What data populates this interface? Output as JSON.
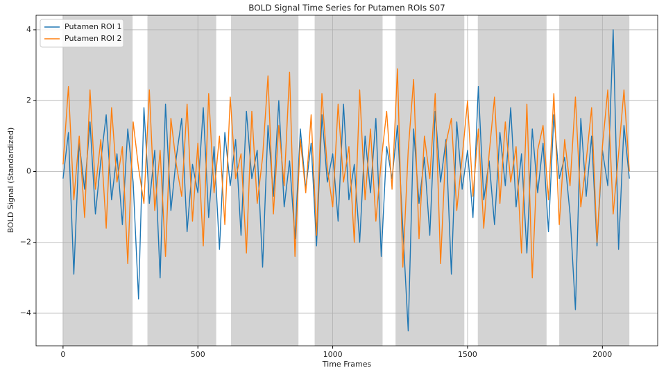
{
  "chart_data": {
    "type": "line",
    "title": "BOLD Signal Time Series for Putamen ROIs S07",
    "xlabel": "Time Frames",
    "ylabel": "BOLD Signal (Standardized)",
    "x": [
      0,
      20,
      40,
      60,
      80,
      100,
      120,
      140,
      160,
      180,
      200,
      220,
      240,
      260,
      280,
      300,
      320,
      340,
      360,
      380,
      400,
      420,
      440,
      460,
      480,
      500,
      520,
      540,
      560,
      580,
      600,
      620,
      640,
      660,
      680,
      700,
      720,
      740,
      760,
      780,
      800,
      820,
      840,
      860,
      880,
      900,
      920,
      940,
      960,
      980,
      1000,
      1020,
      1040,
      1060,
      1080,
      1100,
      1120,
      1140,
      1160,
      1180,
      1200,
      1220,
      1240,
      1260,
      1280,
      1300,
      1320,
      1340,
      1360,
      1380,
      1400,
      1420,
      1440,
      1460,
      1480,
      1500,
      1520,
      1540,
      1560,
      1580,
      1600,
      1620,
      1640,
      1660,
      1680,
      1700,
      1720,
      1740,
      1760,
      1780,
      1800,
      1820,
      1840,
      1860,
      1880,
      1900,
      1920,
      1940,
      1960,
      1980,
      2000,
      2020,
      2040,
      2060,
      2080,
      2100
    ],
    "series": [
      {
        "name": "Putamen ROI 1",
        "color": "#1f77b4",
        "values": [
          -0.2,
          1.1,
          -2.9,
          0.8,
          -0.5,
          1.4,
          -1.2,
          0.3,
          1.6,
          -0.8,
          0.5,
          -1.5,
          1.2,
          -0.3,
          -3.6,
          1.8,
          -0.9,
          0.6,
          -3.0,
          1.9,
          -1.1,
          0.4,
          1.5,
          -1.7,
          0.2,
          -0.6,
          1.8,
          -1.3,
          0.7,
          -2.2,
          1.1,
          -0.4,
          0.9,
          -1.8,
          1.7,
          -0.2,
          0.6,
          -2.7,
          1.3,
          -0.7,
          2.0,
          -1.0,
          0.3,
          -1.9,
          1.2,
          -0.5,
          0.8,
          -2.1,
          1.6,
          -0.3,
          0.5,
          -1.4,
          1.9,
          -0.8,
          0.2,
          -2.0,
          1.0,
          -0.6,
          1.5,
          -2.4,
          0.7,
          -0.2,
          1.3,
          -1.6,
          -4.5,
          1.2,
          -0.9,
          0.4,
          -1.8,
          1.7,
          -0.3,
          0.9,
          -2.9,
          1.4,
          -0.5,
          0.6,
          -1.3,
          2.4,
          -0.8,
          0.3,
          -1.5,
          1.1,
          -0.4,
          1.8,
          -1.0,
          0.5,
          -2.3,
          1.2,
          -0.6,
          0.8,
          -1.7,
          1.6,
          -0.2,
          0.4,
          -1.2,
          -3.9,
          1.5,
          -0.7,
          1.0,
          -2.1,
          0.6,
          -0.4,
          4.0,
          -2.2,
          1.3,
          -0.2
        ]
      },
      {
        "name": "Putamen ROI 2",
        "color": "#ff7f0e",
        "values": [
          0.2,
          2.4,
          -0.8,
          1.0,
          -1.3,
          2.3,
          -0.5,
          0.9,
          -1.6,
          1.8,
          -0.3,
          0.7,
          -2.6,
          1.4,
          0.1,
          -0.9,
          2.3,
          -1.1,
          0.6,
          -2.4,
          1.5,
          0.2,
          -0.7,
          1.9,
          -1.4,
          0.8,
          -2.1,
          2.2,
          -0.6,
          1.0,
          -1.5,
          2.1,
          -0.2,
          0.5,
          -2.3,
          1.7,
          -0.9,
          0.4,
          2.7,
          -1.2,
          1.3,
          -0.4,
          2.8,
          -2.4,
          0.9,
          -0.6,
          1.6,
          -1.8,
          2.2,
          0.1,
          -1.0,
          1.9,
          -0.3,
          0.7,
          -2.0,
          2.3,
          -0.8,
          1.2,
          -1.4,
          0.3,
          1.7,
          -0.5,
          2.9,
          -2.7,
          0.6,
          2.6,
          -1.9,
          1.0,
          -0.2,
          2.2,
          -2.6,
          0.8,
          1.5,
          -1.1,
          0.4,
          2.0,
          -0.7,
          1.2,
          -1.6,
          0.5,
          2.1,
          -0.9,
          1.4,
          -0.3,
          0.7,
          -2.3,
          1.9,
          -3.0,
          0.6,
          1.3,
          -0.8,
          2.2,
          -1.5,
          0.9,
          -0.4,
          2.1,
          -1.0,
          0.3,
          1.8,
          -2.0,
          0.7,
          2.3,
          -1.2,
          0.5,
          2.3,
          0.0
        ]
      }
    ],
    "blocks": [
      {
        "start": 0,
        "end": 258
      },
      {
        "start": 313,
        "end": 568
      },
      {
        "start": 623,
        "end": 873
      },
      {
        "start": 933,
        "end": 1185
      },
      {
        "start": 1233,
        "end": 1488
      },
      {
        "start": 1538,
        "end": 1793
      },
      {
        "start": 1840,
        "end": 2100
      }
    ],
    "block_color": "#d3d3d3",
    "xlim": [
      -100,
      2205
    ],
    "ylim": [
      -4.92,
      4.41
    ],
    "xticks": [
      0,
      500,
      1000,
      1500,
      2000
    ],
    "yticks": [
      {
        "value": -4,
        "label": "−4"
      },
      {
        "value": -2,
        "label": "−2"
      },
      0,
      2,
      4
    ],
    "grid": true,
    "legend": "upper-left"
  }
}
